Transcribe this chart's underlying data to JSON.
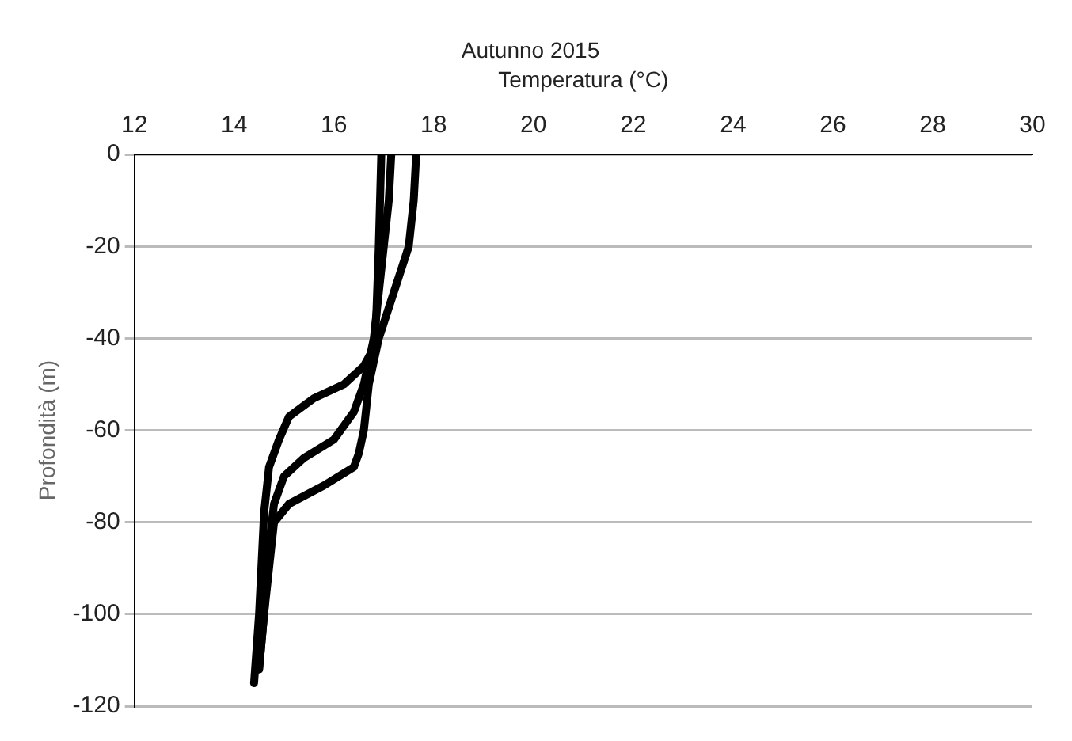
{
  "chart_data": {
    "type": "line",
    "title": "Autunno 2015",
    "xlabel": "Temperatura (°C)",
    "ylabel": "Profondità (m)",
    "xlim": [
      12,
      30
    ],
    "xticks": [
      12,
      14,
      16,
      18,
      20,
      22,
      24,
      26,
      28,
      30
    ],
    "ylim": [
      -120,
      0
    ],
    "yticks": [
      0,
      -20,
      -40,
      -60,
      -80,
      -100,
      -120
    ],
    "grid": "y",
    "legend": false,
    "marker": "none",
    "line_style": "solid",
    "series": [
      {
        "color": "#000000",
        "x": [
          16.95,
          16.9,
          16.85,
          16.8,
          16.6,
          16.2,
          15.6,
          15.1,
          14.9,
          14.7,
          14.6,
          14.5,
          14.4
        ],
        "values": [
          0,
          -20,
          -35,
          -42,
          -46,
          -50,
          -53,
          -57,
          -62,
          -68,
          -78,
          -100,
          -115
        ]
      },
      {
        "color": "#000000",
        "x": [
          17.15,
          17.1,
          17.0,
          16.9,
          16.8,
          16.6,
          16.4,
          16.0,
          15.4,
          15.0,
          14.8,
          14.7,
          14.6,
          14.5
        ],
        "values": [
          0,
          -10,
          -20,
          -30,
          -40,
          -50,
          -56,
          -62,
          -66,
          -70,
          -76,
          -85,
          -100,
          -112
        ]
      },
      {
        "color": "#000000",
        "x": [
          17.65,
          17.6,
          17.5,
          17.2,
          16.9,
          16.7,
          16.6,
          16.5,
          16.4,
          15.8,
          15.1,
          14.8,
          14.7,
          14.6,
          14.5
        ],
        "values": [
          0,
          -10,
          -20,
          -30,
          -40,
          -50,
          -60,
          -65,
          -68,
          -72,
          -76,
          -80,
          -90,
          -100,
          -112
        ]
      }
    ]
  }
}
